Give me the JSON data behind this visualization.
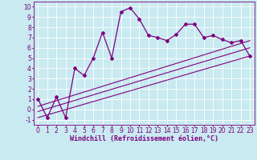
{
  "title": "",
  "xlabel": "Windchill (Refroidissement éolien,°C)",
  "ylabel": "",
  "background_color": "#c8eaf0",
  "line_color": "#800080",
  "grid_color": "#aaddee",
  "xlim": [
    -0.5,
    23.5
  ],
  "ylim": [
    -1.5,
    10.5
  ],
  "xticks": [
    0,
    1,
    2,
    3,
    4,
    5,
    6,
    7,
    8,
    9,
    10,
    11,
    12,
    13,
    14,
    15,
    16,
    17,
    18,
    19,
    20,
    21,
    22,
    23
  ],
  "yticks": [
    -1,
    0,
    1,
    2,
    3,
    4,
    5,
    6,
    7,
    8,
    9,
    10
  ],
  "curve_x": [
    0,
    1,
    2,
    3,
    4,
    5,
    6,
    7,
    8,
    9,
    10,
    11,
    12,
    13,
    14,
    15,
    16,
    17,
    18,
    19,
    20,
    21,
    22,
    23
  ],
  "curve_y": [
    1.0,
    -0.8,
    1.2,
    -0.8,
    4.0,
    3.3,
    5.0,
    7.5,
    5.0,
    9.5,
    9.9,
    8.8,
    7.2,
    7.0,
    6.7,
    7.3,
    8.3,
    8.3,
    7.0,
    7.2,
    6.8,
    6.5,
    6.7,
    5.2
  ],
  "line1_x": [
    0,
    23
  ],
  "line1_y": [
    -0.8,
    5.2
  ],
  "line2_x": [
    0,
    23
  ],
  "line2_y": [
    -0.2,
    6.0
  ],
  "line3_x": [
    0,
    23
  ],
  "line3_y": [
    0.3,
    6.7
  ],
  "tick_fontsize": 5.5,
  "xlabel_fontsize": 6.0
}
